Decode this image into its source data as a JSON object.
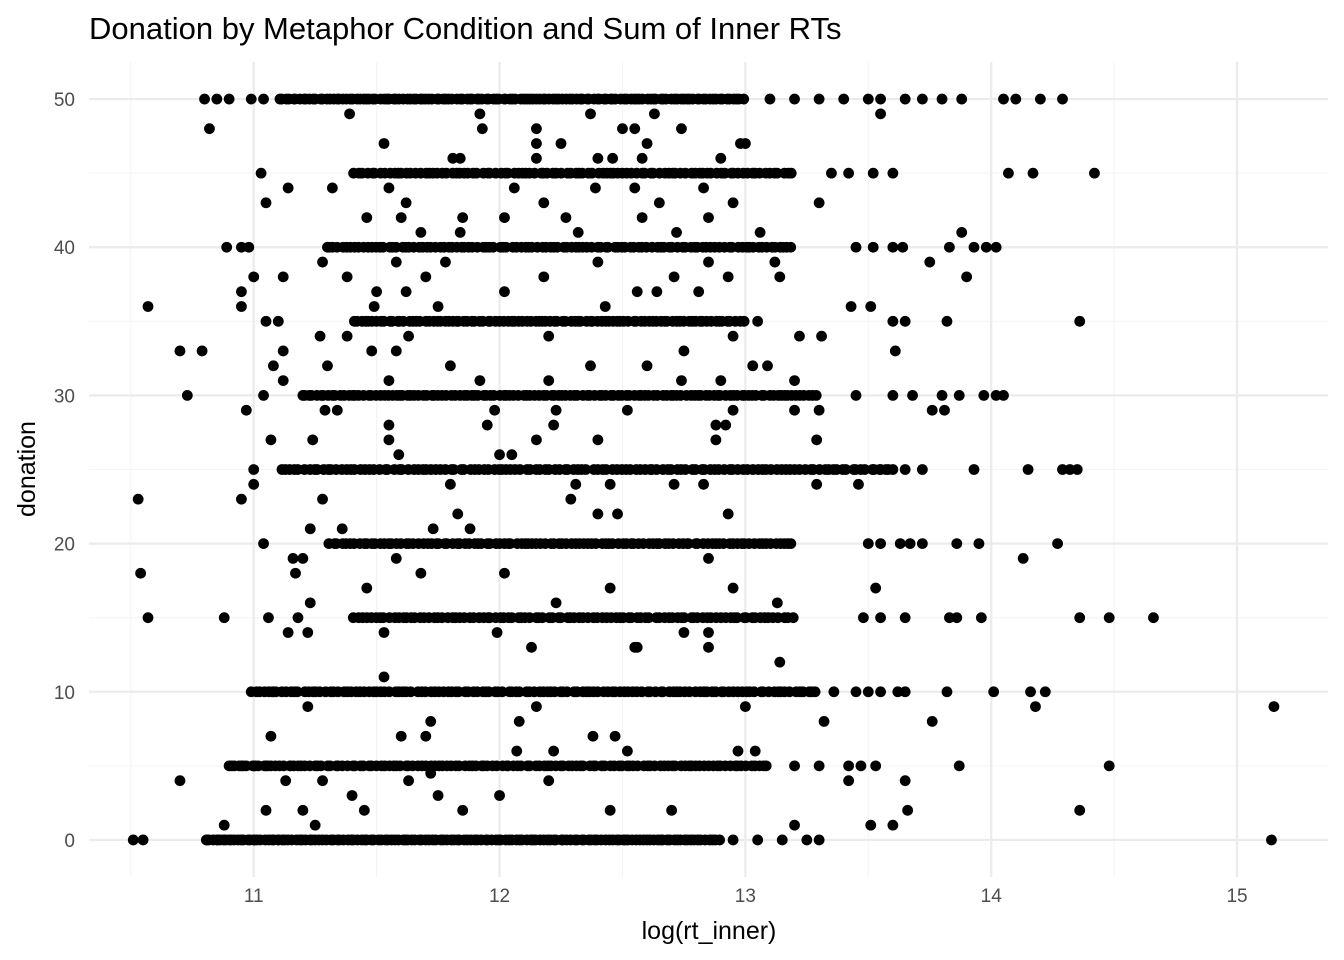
{
  "chart_data": {
    "type": "scatter",
    "title": "Donation by Metaphor Condition and Sum of Inner RTs",
    "xlabel": "log(rt_inner)",
    "ylabel": "donation",
    "xlim": [
      10.33,
      15.37
    ],
    "ylim": [
      -2.5,
      52.5
    ],
    "x_ticks": [
      11,
      12,
      13,
      14,
      15
    ],
    "y_ticks": [
      0,
      10,
      20,
      30,
      40,
      50
    ],
    "x_tick_labels": [
      "11",
      "12",
      "13",
      "14",
      "15"
    ],
    "y_tick_labels": [
      "0",
      "10",
      "20",
      "30",
      "40",
      "50"
    ],
    "grid": true,
    "theme": "minimal",
    "point_color": "#000000",
    "bands": [
      {
        "y": 0,
        "range": [
          10.8,
          12.9
        ],
        "n": 150
      },
      {
        "y": 5,
        "range": [
          10.9,
          13.1
        ],
        "n": 130
      },
      {
        "y": 10,
        "range": [
          11.0,
          13.3
        ],
        "n": 130
      },
      {
        "y": 15,
        "range": [
          11.4,
          13.2
        ],
        "n": 100
      },
      {
        "y": 20,
        "range": [
          11.3,
          13.2
        ],
        "n": 110
      },
      {
        "y": 25,
        "range": [
          11.1,
          13.6
        ],
        "n": 130
      },
      {
        "y": 30,
        "range": [
          11.2,
          13.3
        ],
        "n": 130
      },
      {
        "y": 35,
        "range": [
          11.4,
          13.0
        ],
        "n": 100
      },
      {
        "y": 40,
        "range": [
          11.3,
          13.2
        ],
        "n": 110
      },
      {
        "y": 45,
        "range": [
          11.4,
          13.2
        ],
        "n": 100
      },
      {
        "y": 50,
        "range": [
          11.1,
          13.0
        ],
        "n": 140
      }
    ],
    "points": [
      [
        10.51,
        0
      ],
      [
        10.55,
        0
      ],
      [
        10.81,
        0
      ],
      [
        10.85,
        0
      ],
      [
        10.9,
        0
      ],
      [
        11.0,
        0
      ],
      [
        11.1,
        0
      ],
      [
        12.95,
        0
      ],
      [
        13.05,
        0
      ],
      [
        13.15,
        0
      ],
      [
        13.25,
        0
      ],
      [
        13.3,
        0
      ],
      [
        15.14,
        0
      ],
      [
        11.05,
        2
      ],
      [
        11.2,
        2
      ],
      [
        11.45,
        2
      ],
      [
        11.85,
        2
      ],
      [
        12.45,
        2
      ],
      [
        12.7,
        2
      ],
      [
        13.2,
        1
      ],
      [
        13.51,
        1
      ],
      [
        13.6,
        1
      ],
      [
        14.36,
        2
      ],
      [
        13.66,
        2
      ],
      [
        10.88,
        1
      ],
      [
        11.25,
        1
      ],
      [
        10.9,
        5
      ],
      [
        10.95,
        5
      ],
      [
        11.0,
        5
      ],
      [
        11.05,
        5
      ],
      [
        11.15,
        5
      ],
      [
        13.2,
        5
      ],
      [
        13.3,
        5
      ],
      [
        13.42,
        5
      ],
      [
        13.47,
        5
      ],
      [
        13.53,
        5
      ],
      [
        13.87,
        5
      ],
      [
        14.48,
        5
      ],
      [
        10.7,
        4
      ],
      [
        11.13,
        4
      ],
      [
        11.28,
        4
      ],
      [
        11.63,
        4
      ],
      [
        12.2,
        4
      ],
      [
        13.42,
        4
      ],
      [
        13.65,
        4
      ],
      [
        11.4,
        3
      ],
      [
        11.75,
        3
      ],
      [
        12.0,
        3
      ],
      [
        11.72,
        4.5
      ],
      [
        10.99,
        10
      ],
      [
        11.08,
        10
      ],
      [
        13.36,
        10
      ],
      [
        13.45,
        10
      ],
      [
        13.5,
        10
      ],
      [
        13.55,
        10
      ],
      [
        13.62,
        10
      ],
      [
        13.65,
        10
      ],
      [
        13.82,
        10
      ],
      [
        14.01,
        10
      ],
      [
        14.16,
        10
      ],
      [
        14.22,
        10
      ],
      [
        14.18,
        9
      ],
      [
        15.15,
        9
      ],
      [
        13.76,
        8
      ],
      [
        13.32,
        8
      ],
      [
        11.07,
        7
      ],
      [
        11.6,
        7
      ],
      [
        11.7,
        7
      ],
      [
        12.38,
        7
      ],
      [
        12.47,
        7
      ],
      [
        12.97,
        6
      ],
      [
        12.07,
        6
      ],
      [
        12.22,
        6
      ],
      [
        12.52,
        6
      ],
      [
        13.04,
        6
      ],
      [
        11.53,
        11
      ],
      [
        12.55,
        13
      ],
      [
        12.56,
        13
      ],
      [
        13.14,
        12
      ],
      [
        12.13,
        13
      ],
      [
        12.85,
        13
      ],
      [
        11.22,
        9
      ],
      [
        12.15,
        9
      ],
      [
        13.0,
        9
      ],
      [
        11.72,
        8
      ],
      [
        12.08,
        8
      ],
      [
        10.57,
        15
      ],
      [
        10.88,
        15
      ],
      [
        11.06,
        15
      ],
      [
        11.18,
        15
      ],
      [
        13.48,
        15
      ],
      [
        13.55,
        15
      ],
      [
        13.65,
        15
      ],
      [
        13.83,
        15
      ],
      [
        13.86,
        15
      ],
      [
        13.96,
        15
      ],
      [
        14.36,
        15
      ],
      [
        14.48,
        15
      ],
      [
        14.66,
        15
      ],
      [
        11.14,
        14
      ],
      [
        11.22,
        14
      ],
      [
        11.53,
        14
      ],
      [
        11.99,
        14
      ],
      [
        12.75,
        14
      ],
      [
        12.85,
        14
      ],
      [
        13.13,
        16
      ],
      [
        12.23,
        16
      ],
      [
        11.23,
        16
      ],
      [
        12.45,
        17
      ],
      [
        12.95,
        17
      ],
      [
        13.53,
        17
      ],
      [
        11.46,
        17
      ],
      [
        10.54,
        18
      ],
      [
        11.17,
        18
      ],
      [
        11.68,
        18
      ],
      [
        12.02,
        18
      ],
      [
        11.16,
        19
      ],
      [
        11.2,
        19
      ],
      [
        11.58,
        19
      ],
      [
        12.85,
        19
      ],
      [
        14.13,
        19
      ],
      [
        11.04,
        20
      ],
      [
        13.5,
        20
      ],
      [
        13.55,
        20
      ],
      [
        13.63,
        20
      ],
      [
        13.67,
        20
      ],
      [
        13.72,
        20
      ],
      [
        13.86,
        20
      ],
      [
        13.95,
        20
      ],
      [
        14.27,
        20
      ],
      [
        11.36,
        21
      ],
      [
        11.23,
        21
      ],
      [
        11.73,
        21
      ],
      [
        11.88,
        21
      ],
      [
        12.93,
        22
      ],
      [
        12.4,
        22
      ],
      [
        12.48,
        22
      ],
      [
        11.83,
        22
      ],
      [
        10.53,
        23
      ],
      [
        10.95,
        23
      ],
      [
        11.28,
        23
      ],
      [
        12.29,
        23
      ],
      [
        11.0,
        24
      ],
      [
        11.8,
        24
      ],
      [
        12.31,
        24
      ],
      [
        12.45,
        24
      ],
      [
        12.71,
        24
      ],
      [
        13.46,
        24
      ],
      [
        12.83,
        24
      ],
      [
        13.29,
        24
      ],
      [
        11.0,
        25
      ],
      [
        13.65,
        25
      ],
      [
        13.72,
        25
      ],
      [
        13.93,
        25
      ],
      [
        14.15,
        25
      ],
      [
        14.29,
        25
      ],
      [
        14.32,
        25
      ],
      [
        14.35,
        25
      ],
      [
        13.6,
        25
      ],
      [
        13.55,
        25
      ],
      [
        11.59,
        26
      ],
      [
        12.0,
        26
      ],
      [
        12.05,
        26
      ],
      [
        11.24,
        27
      ],
      [
        11.07,
        27
      ],
      [
        13.29,
        27
      ],
      [
        12.4,
        27
      ],
      [
        12.15,
        27
      ],
      [
        11.55,
        27
      ],
      [
        12.88,
        27
      ],
      [
        11.95,
        28
      ],
      [
        12.88,
        28
      ],
      [
        11.55,
        28
      ],
      [
        12.22,
        28
      ],
      [
        12.92,
        28
      ],
      [
        10.73,
        30
      ],
      [
        11.04,
        30
      ],
      [
        11.2,
        30
      ],
      [
        13.45,
        30
      ],
      [
        13.6,
        30
      ],
      [
        13.68,
        30
      ],
      [
        13.8,
        30
      ],
      [
        13.87,
        30
      ],
      [
        13.97,
        30
      ],
      [
        14.02,
        30
      ],
      [
        14.05,
        30
      ],
      [
        10.97,
        29
      ],
      [
        11.29,
        29
      ],
      [
        11.34,
        29
      ],
      [
        13.2,
        29
      ],
      [
        13.3,
        29
      ],
      [
        13.76,
        29
      ],
      [
        13.81,
        29
      ],
      [
        12.23,
        29
      ],
      [
        11.98,
        29
      ],
      [
        12.95,
        29
      ],
      [
        12.52,
        29
      ],
      [
        11.08,
        32
      ],
      [
        13.03,
        32
      ],
      [
        13.09,
        32
      ],
      [
        13.2,
        31
      ],
      [
        12.74,
        31
      ],
      [
        11.55,
        31
      ],
      [
        11.92,
        31
      ],
      [
        11.12,
        31
      ],
      [
        12.2,
        31
      ],
      [
        12.9,
        31
      ],
      [
        11.3,
        32
      ],
      [
        11.8,
        32
      ],
      [
        12.6,
        32
      ],
      [
        12.37,
        32
      ],
      [
        10.7,
        33
      ],
      [
        10.79,
        33
      ],
      [
        11.12,
        33
      ],
      [
        11.48,
        33
      ],
      [
        11.58,
        33
      ],
      [
        13.61,
        33
      ],
      [
        12.75,
        33
      ],
      [
        12.2,
        34
      ],
      [
        11.27,
        34
      ],
      [
        11.38,
        34
      ],
      [
        13.22,
        34
      ],
      [
        13.31,
        34
      ],
      [
        11.63,
        34
      ],
      [
        12.95,
        34
      ],
      [
        10.57,
        36
      ],
      [
        10.95,
        36
      ],
      [
        11.49,
        36
      ],
      [
        11.75,
        36
      ],
      [
        12.43,
        36
      ],
      [
        13.43,
        36
      ],
      [
        13.51,
        36
      ],
      [
        14.36,
        35
      ],
      [
        13.82,
        35
      ],
      [
        13.65,
        35
      ],
      [
        13.6,
        35
      ],
      [
        11.05,
        35
      ],
      [
        11.1,
        35
      ],
      [
        13.05,
        35
      ],
      [
        10.95,
        37
      ],
      [
        11.5,
        37
      ],
      [
        11.62,
        37
      ],
      [
        12.02,
        37
      ],
      [
        12.56,
        37
      ],
      [
        12.64,
        37
      ],
      [
        12.81,
        37
      ],
      [
        13.9,
        38
      ],
      [
        13.14,
        38
      ],
      [
        11.12,
        38
      ],
      [
        11.38,
        38
      ],
      [
        12.18,
        38
      ],
      [
        12.71,
        38
      ],
      [
        12.93,
        38
      ],
      [
        11.0,
        38
      ],
      [
        11.7,
        38
      ],
      [
        10.89,
        40
      ],
      [
        10.95,
        40
      ],
      [
        10.98,
        40
      ],
      [
        11.3,
        40
      ],
      [
        13.45,
        40
      ],
      [
        13.52,
        40
      ],
      [
        13.6,
        40
      ],
      [
        13.83,
        40
      ],
      [
        13.98,
        40
      ],
      [
        14.02,
        40
      ],
      [
        13.93,
        40
      ],
      [
        13.88,
        41
      ],
      [
        13.75,
        39
      ],
      [
        13.64,
        40
      ],
      [
        13.12,
        39
      ],
      [
        11.28,
        39
      ],
      [
        11.58,
        39
      ],
      [
        11.78,
        39
      ],
      [
        12.4,
        39
      ],
      [
        12.85,
        39
      ],
      [
        13.06,
        41
      ],
      [
        11.68,
        41
      ],
      [
        11.84,
        41
      ],
      [
        12.32,
        41
      ],
      [
        12.72,
        41
      ],
      [
        11.46,
        42
      ],
      [
        12.02,
        42
      ],
      [
        12.27,
        42
      ],
      [
        12.85,
        42
      ],
      [
        11.6,
        42
      ],
      [
        11.85,
        42
      ],
      [
        12.58,
        42
      ],
      [
        11.05,
        43
      ],
      [
        11.62,
        43
      ],
      [
        12.18,
        43
      ],
      [
        12.65,
        43
      ],
      [
        12.95,
        43
      ],
      [
        13.3,
        43
      ],
      [
        11.14,
        44
      ],
      [
        11.32,
        44
      ],
      [
        11.55,
        44
      ],
      [
        12.55,
        44
      ],
      [
        12.83,
        44
      ],
      [
        12.06,
        44
      ],
      [
        12.39,
        44
      ],
      [
        11.03,
        45
      ],
      [
        13.35,
        45
      ],
      [
        13.42,
        45
      ],
      [
        13.52,
        45
      ],
      [
        13.6,
        45
      ],
      [
        14.07,
        45
      ],
      [
        14.17,
        45
      ],
      [
        14.42,
        45
      ],
      [
        11.84,
        46
      ],
      [
        12.15,
        46
      ],
      [
        12.4,
        46
      ],
      [
        12.9,
        46
      ],
      [
        11.81,
        46
      ],
      [
        12.58,
        46
      ],
      [
        12.46,
        46
      ],
      [
        11.53,
        47
      ],
      [
        12.25,
        47
      ],
      [
        12.6,
        47
      ],
      [
        12.98,
        47
      ],
      [
        13.0,
        47
      ],
      [
        12.15,
        47
      ],
      [
        10.82,
        48
      ],
      [
        12.15,
        48
      ],
      [
        12.5,
        48
      ],
      [
        11.93,
        48
      ],
      [
        12.55,
        48
      ],
      [
        12.74,
        48
      ],
      [
        11.39,
        49
      ],
      [
        11.92,
        49
      ],
      [
        12.63,
        49
      ],
      [
        13.55,
        49
      ],
      [
        12.37,
        49
      ],
      [
        10.8,
        50
      ],
      [
        10.85,
        50
      ],
      [
        10.9,
        50
      ],
      [
        10.99,
        50
      ],
      [
        11.04,
        50
      ],
      [
        13.1,
        50
      ],
      [
        13.2,
        50
      ],
      [
        13.3,
        50
      ],
      [
        13.4,
        50
      ],
      [
        13.5,
        50
      ],
      [
        13.55,
        50
      ],
      [
        13.65,
        50
      ],
      [
        13.72,
        50
      ],
      [
        13.8,
        50
      ],
      [
        13.88,
        50
      ],
      [
        14.05,
        50
      ],
      [
        14.1,
        50
      ],
      [
        14.2,
        50
      ],
      [
        14.29,
        50
      ]
    ]
  }
}
